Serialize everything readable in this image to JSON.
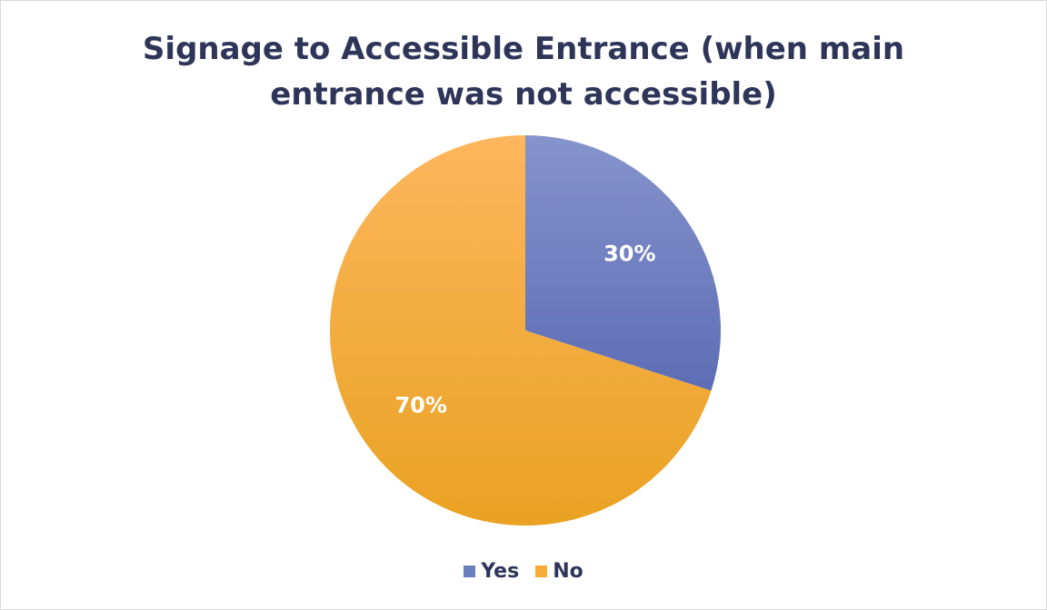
{
  "chart_data": {
    "type": "pie",
    "title_lines": [
      "Signage to Accessible Entrance (when main",
      "entrance was not accessible)"
    ],
    "categories": [
      "Yes",
      "No"
    ],
    "values": [
      30,
      70
    ],
    "value_labels": [
      "30%",
      "70%"
    ],
    "colors": [
      "#6d7ebf",
      "#f7aa34"
    ],
    "legend_position": "bottom",
    "start_angle": "top, clockwise"
  }
}
